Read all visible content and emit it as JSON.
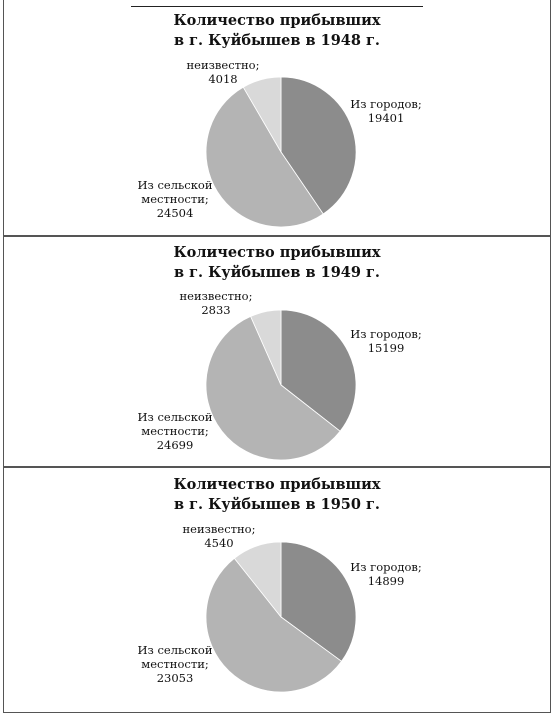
{
  "chart_data": [
    {
      "type": "pie",
      "title_line1": "Количество прибывших",
      "title_line2": "в г. Куйбышев в 1948 г.",
      "slices": [
        {
          "label": "Из городов;",
          "value": 19401,
          "color": "#8c8c8c"
        },
        {
          "label": "Из сельской местности;",
          "value": 24504,
          "color": "#b4b4b4"
        },
        {
          "label": "неизвестно;",
          "value": 4018,
          "color": "#d9d9d9"
        }
      ],
      "labels_text": {
        "cities_name": "Из городов;",
        "cities_value": "19401",
        "rural_name1": "Из сельской",
        "rural_name2": "местности;",
        "rural_value": "24504",
        "unknown_name": "неизвестно;",
        "unknown_value": "4018"
      }
    },
    {
      "type": "pie",
      "title_line1": "Количество прибывших",
      "title_line2": "в г. Куйбышев в 1949 г.",
      "slices": [
        {
          "label": "Из городов;",
          "value": 15199,
          "color": "#8c8c8c"
        },
        {
          "label": "Из сельской местности;",
          "value": 24699,
          "color": "#b4b4b4"
        },
        {
          "label": "неизвестно;",
          "value": 2833,
          "color": "#d9d9d9"
        }
      ],
      "labels_text": {
        "cities_name": "Из городов;",
        "cities_value": "15199",
        "rural_name1": "Из сельской",
        "rural_name2": "местности;",
        "rural_value": "24699",
        "unknown_name": "неизвестно;",
        "unknown_value": "2833"
      }
    },
    {
      "type": "pie",
      "title_line1": "Количество прибывших",
      "title_line2": "в г. Куйбышев в 1950 г.",
      "slices": [
        {
          "label": "Из городов;",
          "value": 14899,
          "color": "#8c8c8c"
        },
        {
          "label": "Из сельской местности;",
          "value": 23053,
          "color": "#b4b4b4"
        },
        {
          "label": "неизвестно;",
          "value": 4540,
          "color": "#d9d9d9"
        }
      ],
      "labels_text": {
        "cities_name": "Из городов;",
        "cities_value": "14899",
        "rural_name1": "Из сельской",
        "rural_name2": "местности;",
        "rural_value": "23053",
        "unknown_name": "неизвестно;",
        "unknown_value": "4540"
      }
    }
  ]
}
